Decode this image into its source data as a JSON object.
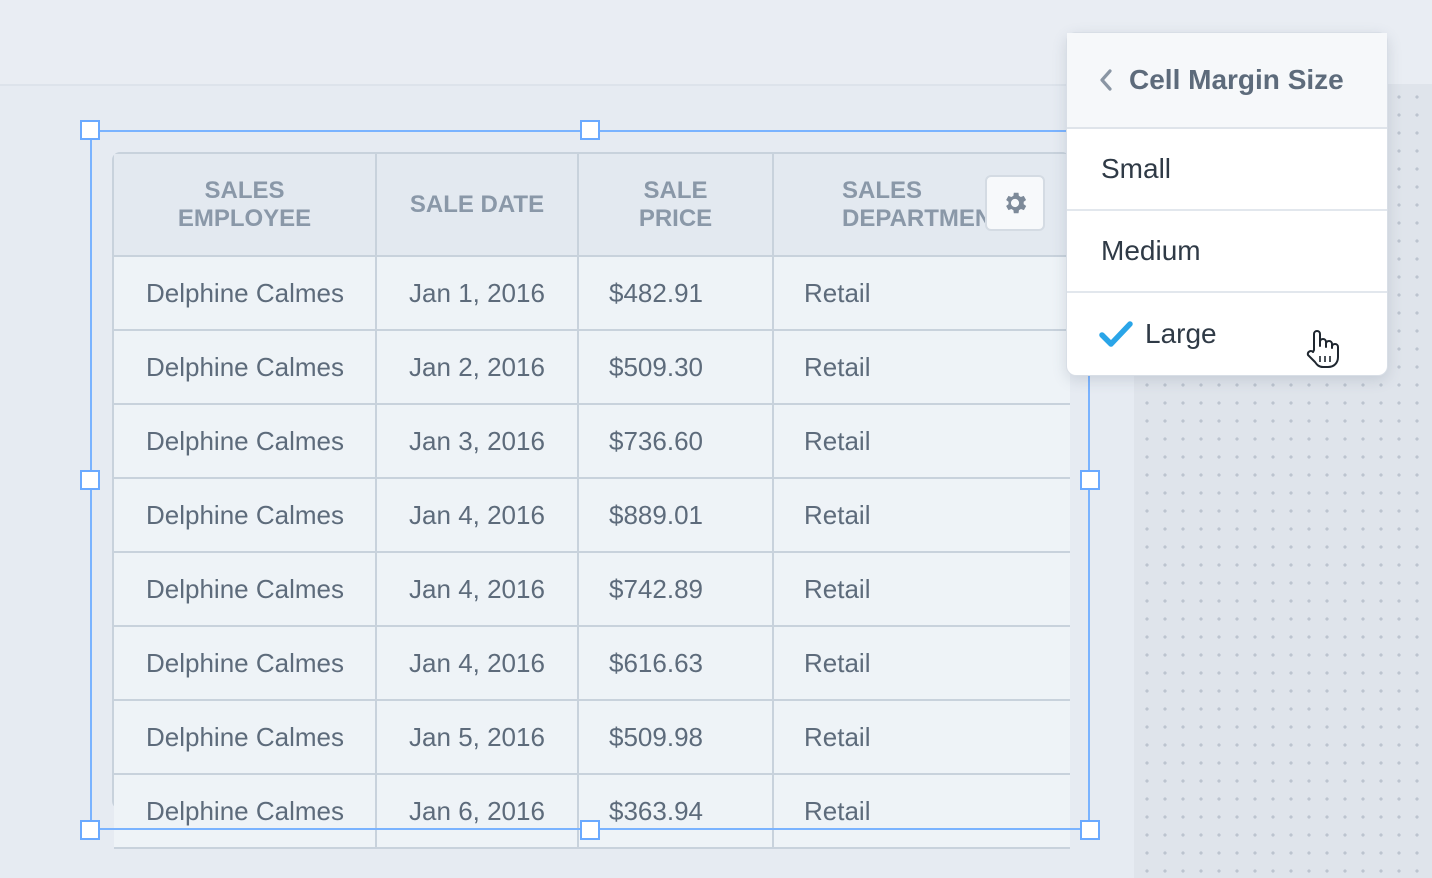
{
  "table": {
    "columns": [
      "SALES\nEMPLOYEE",
      "SALE DATE",
      "SALE\nPRICE",
      "SALES\nDEPARTMENT"
    ],
    "rows": [
      [
        "Delphine Calmes",
        "Jan 1, 2016",
        "$482.91",
        "Retail"
      ],
      [
        "Delphine Calmes",
        "Jan 2, 2016",
        "$509.30",
        "Retail"
      ],
      [
        "Delphine Calmes",
        "Jan 3, 2016",
        "$736.60",
        "Retail"
      ],
      [
        "Delphine Calmes",
        "Jan 4, 2016",
        "$889.01",
        "Retail"
      ],
      [
        "Delphine Calmes",
        "Jan 4, 2016",
        "$742.89",
        "Retail"
      ],
      [
        "Delphine Calmes",
        "Jan 4, 2016",
        "$616.63",
        "Retail"
      ],
      [
        "Delphine Calmes",
        "Jan 5, 2016",
        "$509.98",
        "Retail"
      ],
      [
        "Delphine Calmes",
        "Jan 6, 2016",
        "$363.94",
        "Retail"
      ]
    ],
    "settings_icon": "gear-icon"
  },
  "popover": {
    "title": "Cell Margin Size",
    "back_icon": "chevron-left-icon",
    "options": [
      "Small",
      "Medium",
      "Large"
    ],
    "selected": "Large",
    "check_color": "#2aa5e8"
  },
  "colors": {
    "selection": "#7ab3ff",
    "header_text": "#8a98a8",
    "cell_text": "#5d6b7b"
  }
}
